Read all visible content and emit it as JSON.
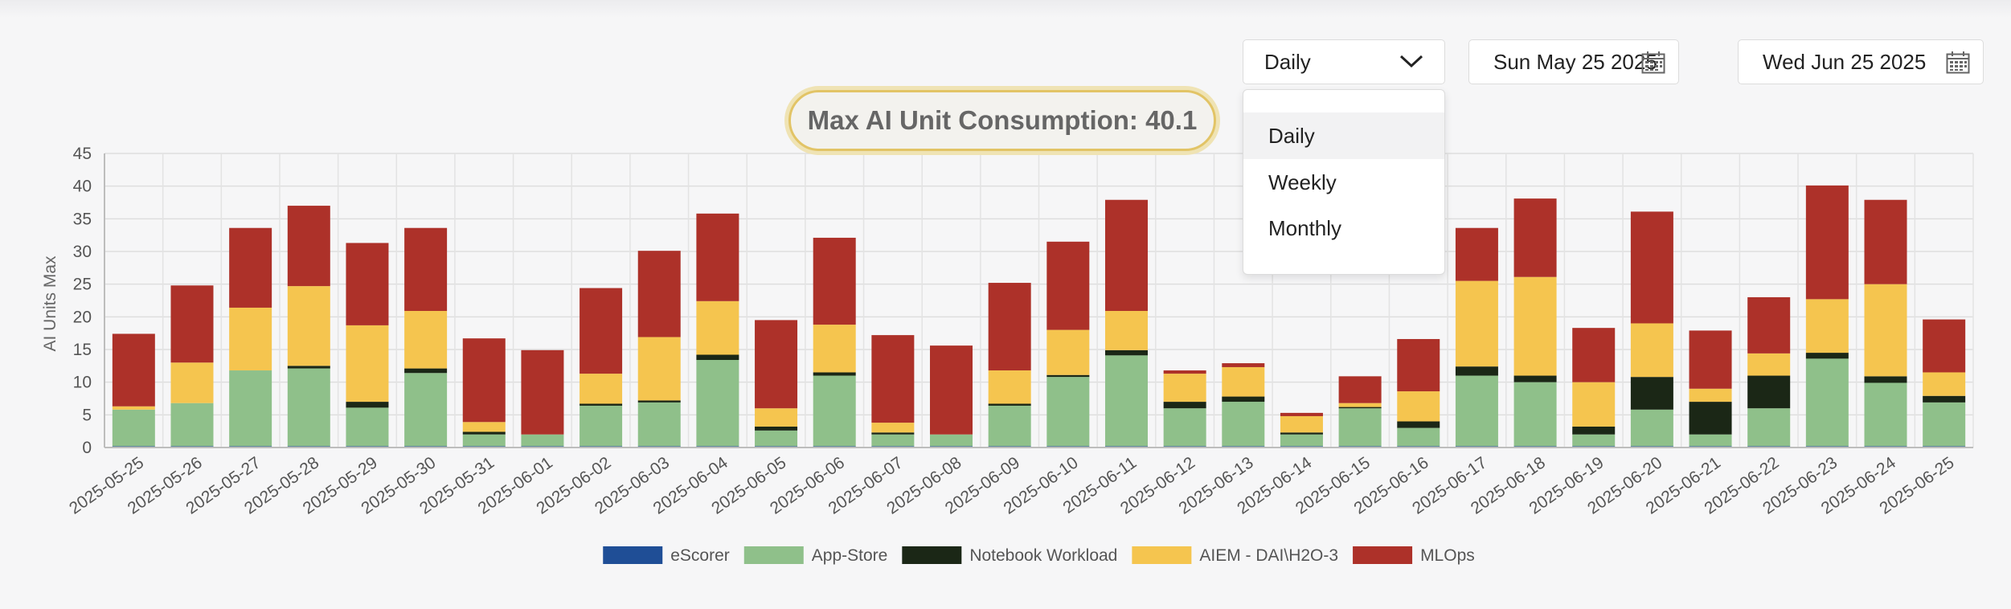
{
  "controls": {
    "period": {
      "value": "Daily",
      "options": [
        "Daily",
        "Weekly",
        "Monthly"
      ],
      "selected_option": "Daily"
    },
    "start_date": "Sun May 25 2025",
    "end_date": "Wed Jun 25 2025"
  },
  "icons": {
    "dropdown": "chevron-down-icon",
    "date_picker": "calendar-icon"
  },
  "chart_data": {
    "type": "bar",
    "stacked": true,
    "title": "Max AI Unit Consumption: 40.1",
    "xlabel": "",
    "ylabel": "AI Units Max",
    "ylim": [
      0,
      45
    ],
    "yticks": [
      0,
      5,
      10,
      15,
      20,
      25,
      30,
      35,
      40,
      45
    ],
    "grid": true,
    "legend_position": "bottom",
    "categories": [
      "2025-05-25",
      "2025-05-26",
      "2025-05-27",
      "2025-05-28",
      "2025-05-29",
      "2025-05-30",
      "2025-05-31",
      "2025-06-01",
      "2025-06-02",
      "2025-06-03",
      "2025-06-04",
      "2025-06-05",
      "2025-06-06",
      "2025-06-07",
      "2025-06-08",
      "2025-06-09",
      "2025-06-10",
      "2025-06-11",
      "2025-06-12",
      "2025-06-13",
      "2025-06-14",
      "2025-06-15",
      "2025-06-16",
      "2025-06-17",
      "2025-06-18",
      "2025-06-19",
      "2025-06-20",
      "2025-06-21",
      "2025-06-22",
      "2025-06-23",
      "2025-06-24",
      "2025-06-25"
    ],
    "series": [
      {
        "name": "eScorer",
        "color": "#1f4e96",
        "values": [
          0.2,
          0.2,
          0.2,
          0.2,
          0.2,
          0.2,
          0.2,
          0.2,
          0.2,
          0.2,
          0.2,
          0.2,
          0.2,
          0.2,
          0.2,
          0.2,
          0.2,
          0.2,
          0.2,
          0.2,
          0.2,
          0.2,
          0.2,
          0.2,
          0.2,
          0.2,
          0.2,
          0.2,
          0.2,
          0.2,
          0.2,
          0.2
        ]
      },
      {
        "name": "App-Store",
        "color": "#8fc08a",
        "values": [
          5.6,
          6.6,
          11.6,
          11.9,
          5.9,
          11.2,
          1.8,
          1.8,
          6.2,
          6.7,
          13.2,
          2.4,
          10.8,
          1.8,
          1.8,
          6.2,
          10.6,
          13.9,
          5.8,
          6.8,
          1.8,
          5.8,
          2.8,
          10.8,
          9.8,
          1.8,
          5.6,
          1.8,
          5.8,
          13.4,
          9.7,
          6.7
        ]
      },
      {
        "name": "Notebook Workload",
        "color": "#1b2716",
        "values": [
          0,
          0,
          0,
          0.4,
          0.9,
          0.7,
          0.4,
          0,
          0.3,
          0.3,
          0.8,
          0.6,
          0.5,
          0.3,
          0,
          0.3,
          0.3,
          0.8,
          1,
          0.8,
          0.3,
          0.2,
          1,
          1.4,
          1,
          1.2,
          5,
          5,
          5,
          0.9,
          1,
          1
        ]
      },
      {
        "name": "AIEM - DAI\\H2O-3",
        "color": "#f5c54f",
        "values": [
          0.5,
          6.2,
          9.6,
          12.2,
          11.7,
          8.8,
          1.5,
          0,
          4.6,
          9.7,
          8.2,
          2.8,
          7.3,
          1.5,
          0,
          5.1,
          6.9,
          6,
          4.3,
          4.5,
          2.5,
          0.6,
          4.6,
          13.1,
          15.1,
          6.8,
          8.2,
          2,
          3.4,
          8.2,
          14.1,
          3.6
        ]
      },
      {
        "name": "MLOps",
        "color": "#ad3129",
        "values": [
          11.1,
          11.8,
          12.2,
          12.3,
          12.6,
          12.7,
          12.8,
          12.9,
          13.1,
          13.2,
          13.4,
          13.5,
          13.3,
          13.4,
          13.6,
          13.4,
          13.5,
          17,
          0.5,
          0.6,
          0.5,
          4.1,
          8,
          8.1,
          12,
          8.3,
          17.1,
          8.9,
          8.6,
          17.4,
          12.9,
          8.1
        ]
      }
    ]
  }
}
